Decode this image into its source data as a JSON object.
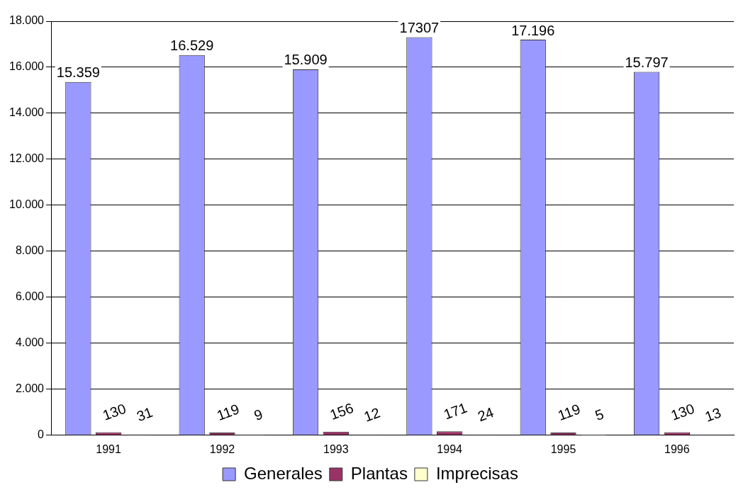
{
  "chart_data": {
    "type": "bar",
    "categories": [
      "1991",
      "1992",
      "1993",
      "1994",
      "1995",
      "1996"
    ],
    "series": [
      {
        "name": "Generales",
        "color": "#9999ff",
        "values": [
          15359,
          16529,
          15909,
          17307,
          17196,
          15797
        ],
        "value_labels": [
          "15.359",
          "16.529",
          "15.909",
          "17307",
          "17.196",
          "15.797"
        ]
      },
      {
        "name": "Plantas",
        "color": "#993366",
        "values": [
          130,
          119,
          156,
          171,
          119,
          130
        ],
        "value_labels": [
          "130",
          "119",
          "156",
          "171",
          "119",
          "130"
        ]
      },
      {
        "name": "Imprecisas",
        "color": "#ffffcc",
        "values": [
          31,
          9,
          12,
          24,
          5,
          13
        ],
        "value_labels": [
          "31",
          "9",
          "12",
          "24",
          "5",
          "13"
        ]
      }
    ],
    "ylim": [
      0,
      18000
    ],
    "yticks": [
      {
        "value": 0,
        "label": "0"
      },
      {
        "value": 2000,
        "label": "2.000"
      },
      {
        "value": 4000,
        "label": "4.000"
      },
      {
        "value": 6000,
        "label": "6.000"
      },
      {
        "value": 8000,
        "label": "8.000"
      },
      {
        "value": 10000,
        "label": "10.000"
      },
      {
        "value": 12000,
        "label": "12.000"
      },
      {
        "value": 14000,
        "label": "14.000"
      },
      {
        "value": 16000,
        "label": "16.000"
      },
      {
        "value": 18000,
        "label": "18.000"
      }
    ],
    "grid": "y",
    "legend": "bottom"
  }
}
